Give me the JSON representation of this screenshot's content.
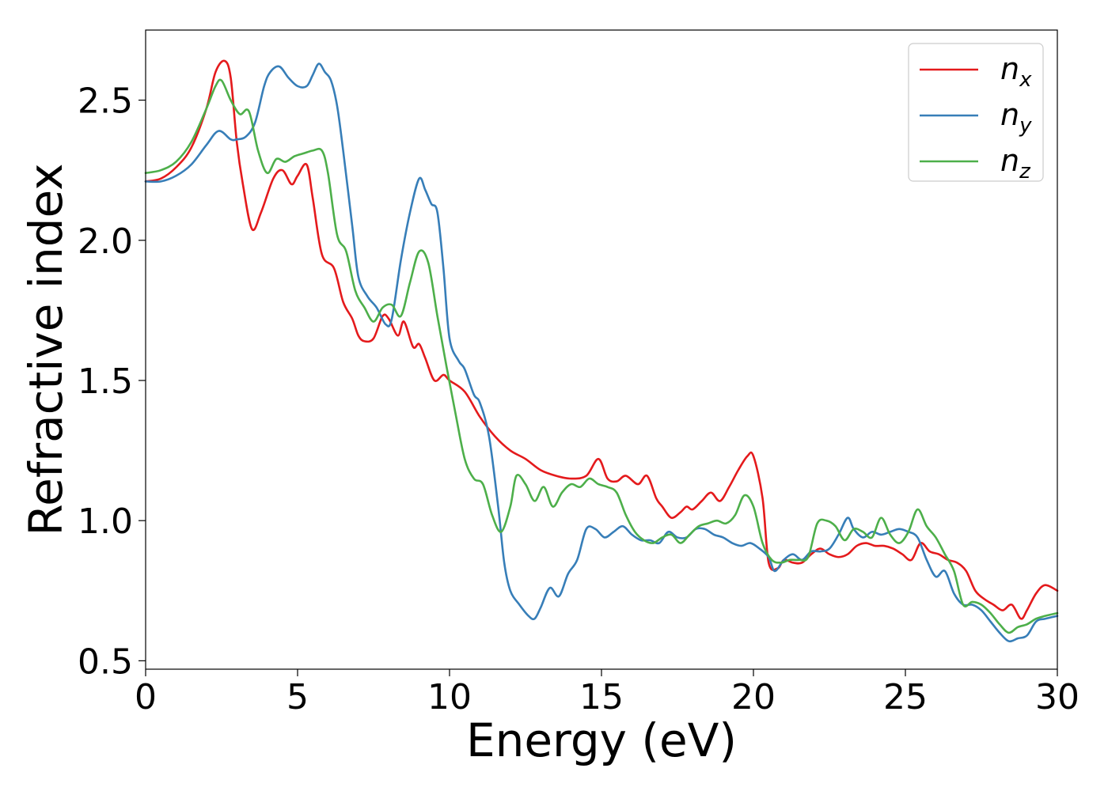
{
  "chart_data": {
    "type": "line",
    "title": "",
    "xlabel": "Energy (eV)",
    "ylabel": "Refractive index",
    "xlim": [
      0,
      30
    ],
    "ylim": [
      0.47,
      2.75
    ],
    "xticks": [
      0,
      5,
      10,
      15,
      20,
      25,
      30
    ],
    "xtick_labels": [
      "0",
      "5",
      "10",
      "15",
      "20",
      "25",
      "30"
    ],
    "yticks": [
      0.5,
      1.0,
      1.5,
      2.0,
      2.5
    ],
    "ytick_labels": [
      "0.5",
      "1.0",
      "1.5",
      "2.0",
      "2.5"
    ],
    "grid": false,
    "legend_position": "top-right",
    "series": [
      {
        "name": "n_x",
        "label_main": "n",
        "label_sub": "x",
        "color": "#e41a1c",
        "x": [
          0,
          0.5,
          1,
          1.5,
          2,
          2.3,
          2.6,
          2.8,
          3.0,
          3.2,
          3.5,
          3.8,
          4.2,
          4.5,
          4.8,
          5.0,
          5.3,
          5.5,
          5.8,
          6.2,
          6.5,
          6.8,
          7.0,
          7.2,
          7.5,
          7.8,
          8.0,
          8.3,
          8.5,
          8.8,
          9.0,
          9.2,
          9.5,
          9.8,
          10.0,
          10.5,
          11.0,
          11.5,
          12.0,
          12.5,
          13.0,
          13.5,
          14.0,
          14.5,
          14.9,
          15.2,
          15.5,
          15.8,
          16.2,
          16.5,
          16.8,
          17.0,
          17.3,
          17.6,
          17.8,
          18.0,
          18.3,
          18.6,
          18.9,
          19.2,
          19.5,
          19.8,
          20.0,
          20.3,
          20.5,
          20.8,
          21.0,
          21.3,
          21.6,
          21.9,
          22.2,
          22.5,
          22.8,
          23.1,
          23.4,
          23.7,
          24.0,
          24.3,
          24.6,
          24.9,
          25.2,
          25.5,
          25.8,
          26.1,
          26.4,
          26.7,
          27.0,
          27.3,
          27.6,
          27.9,
          28.2,
          28.5,
          28.8,
          29.0,
          29.3,
          29.6,
          30.0
        ],
        "y": [
          2.21,
          2.22,
          2.26,
          2.33,
          2.47,
          2.6,
          2.64,
          2.58,
          2.35,
          2.2,
          2.04,
          2.1,
          2.22,
          2.25,
          2.2,
          2.23,
          2.27,
          2.15,
          1.95,
          1.9,
          1.78,
          1.72,
          1.66,
          1.64,
          1.65,
          1.73,
          1.72,
          1.66,
          1.71,
          1.62,
          1.63,
          1.58,
          1.5,
          1.52,
          1.5,
          1.46,
          1.37,
          1.3,
          1.25,
          1.22,
          1.18,
          1.16,
          1.15,
          1.16,
          1.22,
          1.15,
          1.14,
          1.16,
          1.13,
          1.16,
          1.08,
          1.05,
          1.01,
          1.03,
          1.05,
          1.04,
          1.07,
          1.1,
          1.07,
          1.12,
          1.18,
          1.23,
          1.23,
          1.08,
          0.85,
          0.83,
          0.86,
          0.85,
          0.85,
          0.88,
          0.9,
          0.88,
          0.87,
          0.88,
          0.91,
          0.92,
          0.91,
          0.91,
          0.9,
          0.88,
          0.86,
          0.92,
          0.89,
          0.88,
          0.86,
          0.85,
          0.82,
          0.75,
          0.72,
          0.7,
          0.68,
          0.7,
          0.65,
          0.68,
          0.74,
          0.77,
          0.75
        ]
      },
      {
        "name": "n_y",
        "label_main": "n",
        "label_sub": "y",
        "color": "#377eb8",
        "x": [
          0,
          0.5,
          1,
          1.5,
          2,
          2.4,
          2.8,
          3.0,
          3.3,
          3.6,
          3.9,
          4.1,
          4.4,
          4.7,
          5.0,
          5.3,
          5.5,
          5.7,
          5.9,
          6.1,
          6.3,
          6.5,
          6.8,
          7.0,
          7.3,
          7.6,
          7.9,
          8.1,
          8.4,
          8.7,
          9.0,
          9.2,
          9.4,
          9.6,
          9.8,
          10.0,
          10.3,
          10.5,
          10.8,
          11.0,
          11.3,
          11.6,
          11.8,
          12.0,
          12.3,
          12.6,
          12.8,
          13.0,
          13.3,
          13.6,
          13.9,
          14.2,
          14.5,
          14.8,
          15.1,
          15.4,
          15.7,
          16.0,
          16.3,
          16.6,
          16.9,
          17.2,
          17.5,
          17.8,
          18.1,
          18.4,
          18.7,
          19.0,
          19.3,
          19.6,
          19.9,
          20.2,
          20.5,
          20.7,
          21.0,
          21.3,
          21.6,
          21.9,
          22.2,
          22.5,
          22.8,
          23.1,
          23.3,
          23.6,
          23.9,
          24.2,
          24.5,
          24.8,
          25.1,
          25.4,
          25.7,
          26.0,
          26.3,
          26.6,
          26.9,
          27.2,
          27.5,
          27.8,
          28.1,
          28.4,
          28.7,
          29.0,
          29.3,
          29.6,
          30.0
        ],
        "y": [
          2.21,
          2.21,
          2.23,
          2.27,
          2.34,
          2.39,
          2.36,
          2.36,
          2.37,
          2.42,
          2.55,
          2.6,
          2.62,
          2.58,
          2.55,
          2.55,
          2.59,
          2.63,
          2.6,
          2.57,
          2.48,
          2.32,
          2.05,
          1.87,
          1.8,
          1.76,
          1.7,
          1.72,
          1.93,
          2.1,
          2.22,
          2.18,
          2.13,
          2.1,
          1.9,
          1.65,
          1.57,
          1.54,
          1.45,
          1.42,
          1.3,
          1.05,
          0.85,
          0.75,
          0.7,
          0.66,
          0.65,
          0.69,
          0.76,
          0.73,
          0.81,
          0.86,
          0.97,
          0.97,
          0.94,
          0.96,
          0.98,
          0.95,
          0.93,
          0.93,
          0.92,
          0.96,
          0.94,
          0.94,
          0.97,
          0.97,
          0.95,
          0.94,
          0.92,
          0.91,
          0.92,
          0.9,
          0.87,
          0.82,
          0.86,
          0.88,
          0.86,
          0.89,
          0.89,
          0.9,
          0.95,
          1.01,
          0.97,
          0.94,
          0.96,
          0.95,
          0.96,
          0.97,
          0.96,
          0.94,
          0.86,
          0.8,
          0.82,
          0.74,
          0.7,
          0.7,
          0.68,
          0.64,
          0.6,
          0.57,
          0.58,
          0.59,
          0.64,
          0.65,
          0.66
        ]
      },
      {
        "name": "n_z",
        "label_main": "n",
        "label_sub": "z",
        "color": "#4daf4a",
        "x": [
          0,
          0.5,
          1,
          1.5,
          2,
          2.3,
          2.5,
          2.8,
          3.1,
          3.4,
          3.7,
          4.0,
          4.3,
          4.6,
          4.9,
          5.2,
          5.5,
          5.8,
          6.0,
          6.3,
          6.6,
          6.9,
          7.2,
          7.5,
          7.8,
          8.1,
          8.4,
          8.7,
          9.0,
          9.3,
          9.6,
          9.9,
          10.2,
          10.5,
          10.8,
          11.1,
          11.4,
          11.7,
          12.0,
          12.2,
          12.5,
          12.8,
          13.1,
          13.4,
          13.7,
          14.0,
          14.3,
          14.6,
          14.9,
          15.2,
          15.5,
          15.8,
          16.1,
          16.4,
          16.7,
          17.0,
          17.3,
          17.6,
          17.9,
          18.2,
          18.5,
          18.8,
          19.1,
          19.4,
          19.7,
          20.0,
          20.3,
          20.6,
          20.9,
          21.2,
          21.5,
          21.8,
          22.1,
          22.4,
          22.7,
          23.0,
          23.3,
          23.6,
          23.9,
          24.2,
          24.5,
          24.8,
          25.1,
          25.4,
          25.7,
          26.0,
          26.3,
          26.6,
          26.9,
          27.2,
          27.5,
          27.8,
          28.1,
          28.4,
          28.7,
          29.0,
          29.3,
          29.6,
          30.0
        ],
        "y": [
          2.24,
          2.25,
          2.28,
          2.35,
          2.47,
          2.55,
          2.57,
          2.5,
          2.45,
          2.46,
          2.32,
          2.24,
          2.29,
          2.28,
          2.3,
          2.31,
          2.32,
          2.32,
          2.24,
          2.02,
          1.96,
          1.82,
          1.76,
          1.71,
          1.76,
          1.77,
          1.73,
          1.85,
          1.96,
          1.92,
          1.73,
          1.55,
          1.38,
          1.22,
          1.15,
          1.13,
          1.02,
          0.96,
          1.05,
          1.16,
          1.13,
          1.07,
          1.12,
          1.05,
          1.1,
          1.13,
          1.12,
          1.15,
          1.13,
          1.12,
          1.1,
          1.02,
          0.96,
          0.93,
          0.92,
          0.94,
          0.95,
          0.92,
          0.95,
          0.98,
          0.99,
          1.0,
          0.99,
          1.02,
          1.09,
          1.05,
          0.92,
          0.86,
          0.85,
          0.86,
          0.86,
          0.87,
          0.99,
          1.0,
          0.98,
          0.93,
          0.97,
          0.96,
          0.94,
          1.01,
          0.95,
          0.92,
          0.96,
          1.04,
          0.98,
          0.94,
          0.88,
          0.82,
          0.7,
          0.71,
          0.7,
          0.67,
          0.63,
          0.6,
          0.62,
          0.63,
          0.65,
          0.66,
          0.67
        ]
      }
    ]
  }
}
